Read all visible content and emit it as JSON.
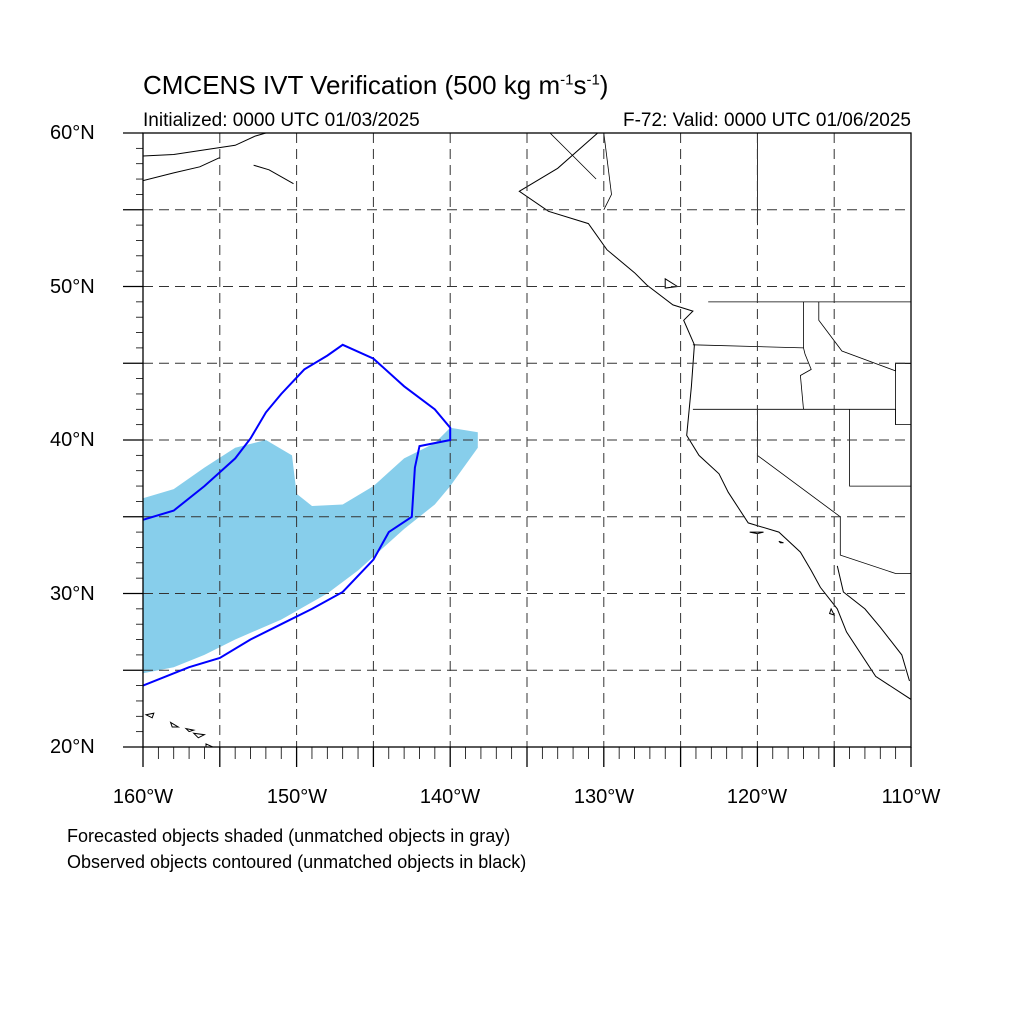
{
  "title": {
    "main": "CMCENS IVT Verification (500 kg m",
    "exp1": "-1",
    "mid": "s",
    "exp2": "-1",
    "end": ")"
  },
  "subtitle": {
    "initialized": "Initialized: 0000 UTC 01/03/2025",
    "valid": "F-72: Valid: 0000 UTC 01/06/2025"
  },
  "axes": {
    "lat_labels": [
      "60°N",
      "50°N",
      "40°N",
      "30°N",
      "20°N"
    ],
    "lon_labels": [
      "160°W",
      "150°W",
      "140°W",
      "130°W",
      "120°W",
      "110°W"
    ],
    "lat_range": [
      20,
      60
    ],
    "lon_range": [
      -160,
      -110
    ],
    "grid": "dashed every 5 degrees"
  },
  "notes": {
    "line1": "Forecasted objects shaded (unmatched objects in gray)",
    "line2": "Observed objects contoured (unmatched objects in black)"
  },
  "colors": {
    "forecast_fill": "#87ceeb",
    "observed_contour": "#0000ff",
    "coastline": "#000000"
  },
  "objects": {
    "forecast": [
      [
        -160,
        24.8
      ],
      [
        -160,
        36.2
      ],
      [
        -158,
        36.8
      ],
      [
        -156,
        38.2
      ],
      [
        -154,
        39.5
      ],
      [
        -152,
        40
      ],
      [
        -150.3,
        39
      ],
      [
        -150,
        36.5
      ],
      [
        -149,
        35.7
      ],
      [
        -147,
        35.8
      ],
      [
        -145,
        37
      ],
      [
        -143,
        38.8
      ],
      [
        -141,
        39.8
      ],
      [
        -140,
        40.8
      ],
      [
        -138.2,
        40.5
      ],
      [
        -138.2,
        39.5
      ],
      [
        -140,
        37
      ],
      [
        -141,
        35.8
      ],
      [
        -143,
        34.2
      ],
      [
        -146,
        31.5
      ],
      [
        -148,
        30
      ],
      [
        -151,
        28.3
      ],
      [
        -154,
        27
      ],
      [
        -156,
        26
      ],
      [
        -158,
        25.2
      ]
    ],
    "observed": [
      [
        -160,
        34.8
      ],
      [
        -158,
        35.4
      ],
      [
        -156,
        37
      ],
      [
        -154,
        38.8
      ],
      [
        -153,
        40.1
      ],
      [
        -152,
        41.8
      ],
      [
        -151,
        43
      ],
      [
        -149.5,
        44.6
      ],
      [
        -148,
        45.5
      ],
      [
        -147,
        46.2
      ],
      [
        -145,
        45.3
      ],
      [
        -143,
        43.5
      ],
      [
        -141,
        42
      ],
      [
        -140,
        40.8
      ],
      [
        -140,
        40
      ],
      [
        -142,
        39.6
      ],
      [
        -142.3,
        38.2
      ],
      [
        -142.5,
        35
      ],
      [
        -144,
        34
      ],
      [
        -145,
        32.2
      ],
      [
        -147,
        30.1
      ],
      [
        -149,
        29
      ],
      [
        -151,
        28
      ],
      [
        -153,
        27
      ],
      [
        -155,
        25.8
      ],
      [
        -157,
        25.2
      ],
      [
        -160,
        24
      ]
    ]
  },
  "coastlines": [
    [
      [
        -130.4,
        60
      ],
      [
        -133,
        57.7
      ],
      [
        -135.5,
        56.2
      ],
      [
        -133.6,
        54.9
      ],
      [
        -131,
        54.1
      ],
      [
        -129.8,
        52.4
      ],
      [
        -128,
        50.9
      ],
      [
        -127.2,
        50.1
      ],
      [
        -125.5,
        48.8
      ],
      [
        -124.2,
        48.4
      ],
      [
        -124.8,
        47.8
      ],
      [
        -124.1,
        46.2
      ],
      [
        -124.3,
        43.5
      ],
      [
        -124.6,
        40.3
      ],
      [
        -123.8,
        39
      ],
      [
        -122.5,
        37.8
      ],
      [
        -121.9,
        36.6
      ],
      [
        -120.6,
        34.6
      ],
      [
        -118.6,
        34
      ],
      [
        -117.2,
        32.7
      ],
      [
        -116.5,
        31.5
      ],
      [
        -115.9,
        30.4
      ],
      [
        -114.8,
        29
      ],
      [
        -114.2,
        27.5
      ],
      [
        -112.3,
        24.6
      ],
      [
        -110,
        23.1
      ]
    ],
    [
      [
        -114.8,
        31.8
      ],
      [
        -114.4,
        30.1
      ],
      [
        -113,
        29
      ],
      [
        -112,
        27.8
      ],
      [
        -110.6,
        26
      ],
      [
        -110.1,
        24.3
      ]
    ],
    [
      [
        -160,
        58.5
      ],
      [
        -158,
        58.6
      ],
      [
        -156,
        58.9
      ],
      [
        -154,
        59.2
      ],
      [
        -152.7,
        59.8
      ],
      [
        -152,
        60
      ]
    ],
    [
      [
        -160,
        56.9
      ],
      [
        -158,
        57.4
      ],
      [
        -156.3,
        57.8
      ],
      [
        -155,
        58.4
      ]
    ],
    [
      [
        -150.2,
        56.7
      ],
      [
        -151.8,
        57.6
      ],
      [
        -152.8,
        57.9
      ]
    ]
  ],
  "borders": [
    [
      [
        -123.2,
        49
      ],
      [
        -110,
        49
      ]
    ],
    [
      [
        -124.2,
        46.2
      ],
      [
        -117,
        46
      ],
      [
        -116.9,
        45.6
      ],
      [
        -116.5,
        44.6
      ],
      [
        -117.2,
        44.2
      ],
      [
        -117,
        42
      ]
    ],
    [
      [
        -124.2,
        42
      ],
      [
        -111,
        42
      ],
      [
        -111,
        41
      ]
    ],
    [
      [
        -120,
        42
      ],
      [
        -120,
        39
      ],
      [
        -114.6,
        35
      ],
      [
        -114.6,
        32.5
      ],
      [
        -111,
        31.3
      ],
      [
        -110,
        31.3
      ]
    ],
    [
      [
        -117,
        49
      ],
      [
        -117,
        46
      ]
    ],
    [
      [
        -116,
        49
      ],
      [
        -116,
        47.8
      ],
      [
        -114.5,
        45.8
      ],
      [
        -111,
        44.5
      ],
      [
        -111,
        45
      ],
      [
        -110,
        45
      ]
    ],
    [
      [
        -114,
        42
      ],
      [
        -114,
        37
      ],
      [
        -110,
        37
      ]
    ],
    [
      [
        -110,
        45
      ],
      [
        -111,
        45
      ],
      [
        -111,
        41
      ],
      [
        -110,
        41
      ]
    ],
    [
      [
        -130,
        60
      ],
      [
        -129.5,
        56
      ],
      [
        -130,
        55
      ]
    ],
    [
      [
        -120,
        60
      ],
      [
        -120,
        54
      ]
    ],
    [
      [
        -133.5,
        60
      ],
      [
        -132,
        58.5
      ],
      [
        -130.5,
        57
      ]
    ]
  ],
  "islands": [
    [
      [
        -159.8,
        22.1
      ],
      [
        -159.3,
        22.2
      ],
      [
        -159.4,
        21.9
      ],
      [
        -159.8,
        22.1
      ]
    ],
    [
      [
        -158.2,
        21.6
      ],
      [
        -157.7,
        21.3
      ],
      [
        -158.1,
        21.3
      ],
      [
        -158.2,
        21.6
      ]
    ],
    [
      [
        -157.2,
        21.2
      ],
      [
        -156.7,
        21.1
      ],
      [
        -157,
        21
      ],
      [
        -157.2,
        21.2
      ]
    ],
    [
      [
        -156.7,
        20.9
      ],
      [
        -156,
        20.8
      ],
      [
        -156.4,
        20.6
      ],
      [
        -156.7,
        20.9
      ]
    ],
    [
      [
        -155.9,
        20.2
      ],
      [
        -155,
        19.8
      ],
      [
        -154.8,
        19.5
      ],
      [
        -155.6,
        18.9
      ],
      [
        -155.9,
        19.6
      ],
      [
        -155.9,
        20.2
      ]
    ],
    [
      [
        -120.5,
        34
      ],
      [
        -119.6,
        34
      ],
      [
        -120,
        33.9
      ],
      [
        -120.5,
        34
      ]
    ],
    [
      [
        -118.6,
        33.4
      ],
      [
        -118.3,
        33.3
      ],
      [
        -118.5,
        33.3
      ],
      [
        -118.6,
        33.4
      ]
    ],
    [
      [
        -115.2,
        29
      ],
      [
        -115,
        28.6
      ],
      [
        -115.3,
        28.7
      ],
      [
        -115.2,
        29
      ]
    ],
    [
      [
        -126,
        50.5
      ],
      [
        -125.2,
        50
      ],
      [
        -126,
        49.9
      ],
      [
        -126,
        50.5
      ]
    ]
  ]
}
